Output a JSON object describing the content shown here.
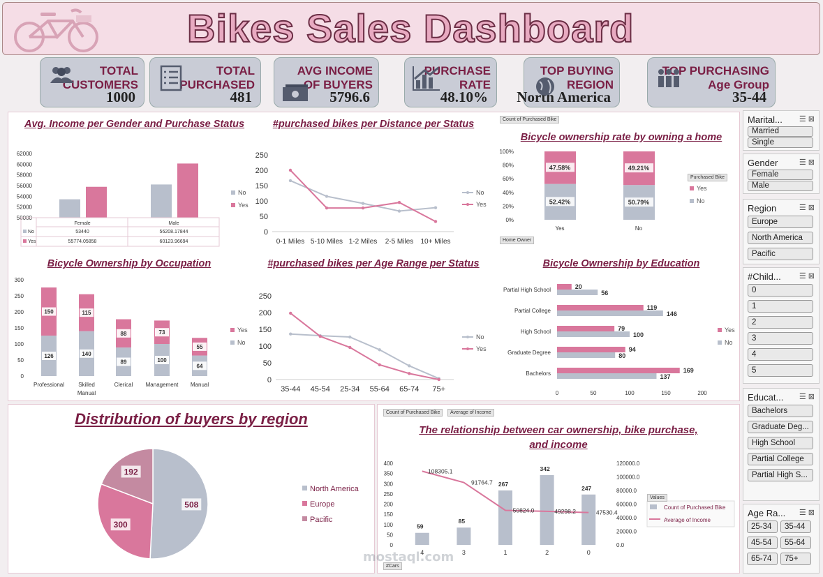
{
  "header": {
    "title": "Bikes Sales Dashboard"
  },
  "kpis": [
    {
      "l1": "TOTAL",
      "l2": "CUSTOMERS",
      "value": "1000",
      "icon": "people-icon"
    },
    {
      "l1": "TOTAL",
      "l2": "PURCHASED",
      "value": "481",
      "icon": "checklist-icon"
    },
    {
      "l1": "AVG INCOME",
      "l2": "OF BUYERS",
      "value": "5796.6",
      "icon": "money-icon"
    },
    {
      "l1": "PURCHASE",
      "l2": "RATE",
      "value": "48.10%",
      "icon": "bar-chart-icon"
    },
    {
      "l1": "TOP BUYING",
      "l2": "REGION",
      "value": "North America",
      "icon": "globe-icon"
    },
    {
      "l1": "TOP PURCHASING",
      "l2": "Age Group",
      "value": "35-44",
      "icon": "group-icon"
    }
  ],
  "colors": {
    "no": "#b8bfcc",
    "yes": "#d9779c",
    "title": "#7a1f45"
  },
  "chart_data": [
    {
      "type": "bar",
      "title": "Avg. Income per Gender and Purchase Status",
      "categories": [
        "Female",
        "Male"
      ],
      "series": [
        {
          "name": "No",
          "values": [
            53440,
            56208.17844
          ]
        },
        {
          "name": "Yes",
          "values": [
            55774.05858,
            60123.96694
          ]
        }
      ],
      "ylim": [
        50000,
        62000
      ],
      "yticks": [
        "62000",
        "60000",
        "58000",
        "56000",
        "54000",
        "52000",
        "50000"
      ],
      "table": {
        "no_label": "No",
        "yes_label": "Yes",
        "no": [
          "53440",
          "56208.17844"
        ],
        "yes": [
          "55774.05858",
          "60123.96694"
        ]
      },
      "legend": [
        "No",
        "Yes"
      ]
    },
    {
      "type": "line",
      "title": "#purchased bikes per Distance per Status",
      "categories": [
        "0-1 Miles",
        "5-10 Miles",
        "1-2 Miles",
        "2-5 Miles",
        "10+ Miles"
      ],
      "series": [
        {
          "name": "No",
          "values": [
            166,
            115,
            92,
            67,
            78
          ]
        },
        {
          "name": "Yes",
          "values": [
            200,
            77,
            77,
            95,
            33
          ]
        }
      ],
      "ylim": [
        0,
        250
      ],
      "yticks": [
        "250",
        "200",
        "150",
        "100",
        "50",
        "0"
      ],
      "legend": [
        "No",
        "Yes"
      ]
    },
    {
      "type": "bar",
      "title": "Bicycle ownership rate by owning a home",
      "stacked": "percent",
      "categories": [
        "Yes",
        "No"
      ],
      "series": [
        {
          "name": "No",
          "values": [
            52.42,
            50.79
          ],
          "labels": [
            "52.42%",
            "50.79%"
          ]
        },
        {
          "name": "Yes",
          "values": [
            47.58,
            49.21
          ],
          "labels": [
            "47.58%",
            "49.21%"
          ]
        }
      ],
      "yticks": [
        "100%",
        "80%",
        "60%",
        "40%",
        "20%",
        "0%"
      ],
      "field_buttons": {
        "top": "Count of Purchased Bike",
        "legend": "Purchased Bike",
        "axis": "Home Owner"
      },
      "legend": [
        "Yes",
        "No"
      ]
    },
    {
      "type": "bar",
      "title": "Bicycle Ownership by Occupation",
      "stacked": true,
      "categories": [
        "Professional",
        "Skilled Manual",
        "Clerical",
        "Management",
        "Manual"
      ],
      "series": [
        {
          "name": "No",
          "values": [
            126,
            140,
            89,
            100,
            64
          ]
        },
        {
          "name": "Yes",
          "values": [
            150,
            115,
            88,
            73,
            55
          ]
        }
      ],
      "ylim": [
        0,
        300
      ],
      "yticks": [
        "300",
        "250",
        "200",
        "150",
        "100",
        "50",
        "0"
      ],
      "legend": [
        "Yes",
        "No"
      ]
    },
    {
      "type": "line",
      "title": "#purchased bikes per Age Range per Status",
      "categories": [
        "35-44",
        "45-54",
        "25-34",
        "55-64",
        "65-74",
        "75+"
      ],
      "series": [
        {
          "name": "No",
          "values": [
            136,
            131,
            127,
            89,
            41,
            3
          ]
        },
        {
          "name": "Yes",
          "values": [
            198,
            129,
            96,
            44,
            18,
            0
          ]
        }
      ],
      "ylim": [
        0,
        250
      ],
      "yticks": [
        "250",
        "200",
        "150",
        "100",
        "50",
        "0"
      ],
      "legend": [
        "No",
        "Yes"
      ]
    },
    {
      "type": "bar",
      "orientation": "horizontal",
      "title": "Bicycle Ownership by Education",
      "categories": [
        "Partial High School",
        "Partial College",
        "High School",
        "Graduate Degree",
        "Bachelors"
      ],
      "series": [
        {
          "name": "Yes",
          "values": [
            20,
            119,
            79,
            94,
            169
          ]
        },
        {
          "name": "No",
          "values": [
            56,
            146,
            100,
            80,
            137
          ]
        }
      ],
      "xlim": [
        0,
        200
      ],
      "xticks": [
        "0",
        "50",
        "100",
        "150",
        "200"
      ],
      "legend": [
        "Yes",
        "No"
      ]
    },
    {
      "type": "pie",
      "title": "Distribution of buyers by region",
      "categories": [
        "North America",
        "Europe",
        "Pacific"
      ],
      "values": [
        508,
        300,
        192
      ],
      "colors": [
        "#b8bfcc",
        "#d9779c",
        "#c48aa1"
      ]
    },
    {
      "type": "bar",
      "title": "The relationship between car ownership, bike purchase, and income",
      "categories": [
        "4",
        "3",
        "1",
        "2",
        "0"
      ],
      "series": [
        {
          "name": "Count of Purchased Bike",
          "values": [
            59,
            85,
            267,
            342,
            247
          ]
        },
        {
          "name": "Average of Income",
          "values": [
            108305.1,
            91764.7,
            50824.0,
            49298.2,
            47530.4
          ],
          "labels": [
            "108305.1",
            "91764.7",
            "50824.0",
            "49298.2",
            "47530.4"
          ]
        }
      ],
      "ylim": [
        0,
        400
      ],
      "yticks": [
        "400",
        "350",
        "300",
        "250",
        "200",
        "150",
        "100",
        "50",
        "0"
      ],
      "y2lim": [
        0,
        120000
      ],
      "y2ticks": [
        "120000.0",
        "100000.0",
        "80000.0",
        "60000.0",
        "40000.0",
        "20000.0",
        "0.0"
      ],
      "field_buttons": {
        "top1": "Count of Purchased Bike",
        "top2": "Average of Income",
        "axis": "#Cars",
        "legend_title": "Values"
      }
    }
  ],
  "slicers": [
    {
      "title": "Marital...",
      "items": [
        "Married",
        "Single"
      ]
    },
    {
      "title": "Gender",
      "items": [
        "Female",
        "Male"
      ]
    },
    {
      "title": "Region",
      "items": [
        "Europe",
        "North America",
        "Pacific"
      ]
    },
    {
      "title": "#Child...",
      "items": [
        "0",
        "1",
        "2",
        "3",
        "4",
        "5"
      ]
    },
    {
      "title": "Educat...",
      "items": [
        "Bachelors",
        "Graduate Deg...",
        "High School",
        "Partial College",
        "Partial High S..."
      ]
    },
    {
      "title": "Age Ra...",
      "items": [
        "25-34",
        "35-44",
        "45-54",
        "55-64",
        "65-74",
        "75+"
      ]
    }
  ],
  "watermark": "mostaql.com"
}
